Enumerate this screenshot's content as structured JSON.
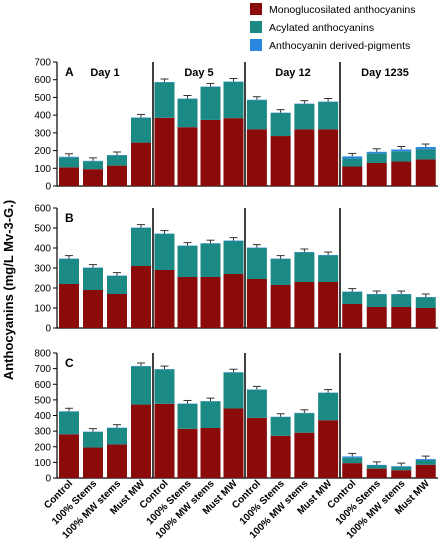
{
  "chart_data": {
    "type": "bar",
    "stacked": true,
    "ylabel": "Anthocyanins (mg/L Mv-3-G.)",
    "legend": {
      "placement": "top-right",
      "entries": [
        {
          "name": "Monoglucosilated anthocyanins",
          "color": "#8b0a0a"
        },
        {
          "name": "Acylated anthocyanins",
          "color": "#1b8a84"
        },
        {
          "name": "Anthocyanin derived-pigments",
          "color": "#2a86e0"
        }
      ]
    },
    "days": [
      "Day 1",
      "Day 5",
      "Day 12",
      "Day 1235"
    ],
    "categories": [
      "Control",
      "100% Stems",
      "100% MW stems",
      "Must MW"
    ],
    "panels": [
      {
        "label": "A",
        "yticks": [
          0,
          100,
          200,
          300,
          400,
          500,
          600,
          700
        ],
        "ylim": [
          0,
          700
        ],
        "series": [
          {
            "name": "Monoglucosilated anthocyanins",
            "values": [
              105,
              95,
              115,
              245,
              385,
              332,
              373,
              383,
              320,
              282,
              320,
              320,
              110,
              130,
              138,
              150
            ]
          },
          {
            "name": "Acylated anthocyanins",
            "values": [
              57,
              45,
              58,
              140,
              200,
              160,
              187,
              205,
              165,
              130,
              143,
              155,
              45,
              55,
              58,
              58
            ]
          },
          {
            "name": "Anthocyanin derived-pigments",
            "values": [
              3,
              2,
              2,
              2,
              2,
              2,
              2,
              2,
              2,
              2,
              2,
              2,
              12,
              8,
              10,
              12
            ]
          }
        ]
      },
      {
        "label": "B",
        "yticks": [
          0,
          100,
          200,
          300,
          400,
          500,
          600
        ],
        "ylim": [
          0,
          600
        ],
        "series": [
          {
            "name": "Monoglucosilated anthocyanins",
            "values": [
              220,
              190,
              170,
              310,
              290,
              255,
              255,
              270,
              245,
              215,
              230,
              230,
              120,
              105,
              105,
              100
            ]
          },
          {
            "name": "Acylated anthocyanins",
            "values": [
              125,
              110,
              90,
              190,
              180,
              155,
              167,
              165,
              155,
              130,
              148,
              133,
              60,
              63,
              63,
              53
            ]
          },
          {
            "name": "Anthocyanin derived-pigments",
            "values": [
              2,
              2,
              2,
              2,
              2,
              2,
              2,
              2,
              2,
              2,
              2,
              2,
              2,
              2,
              2,
              2
            ]
          }
        ]
      },
      {
        "label": "C",
        "yticks": [
          0,
          100,
          200,
          300,
          400,
          500,
          600,
          700,
          800
        ],
        "ylim": [
          0,
          800
        ],
        "series": [
          {
            "name": "Monoglucosilated anthocyanins",
            "values": [
              280,
              195,
              215,
              470,
              475,
              315,
              320,
              445,
              385,
              270,
              290,
              370,
              95,
              60,
              50,
              85
            ]
          },
          {
            "name": "Acylated anthocyanins",
            "values": [
              145,
              100,
              105,
              245,
              220,
              160,
              170,
              230,
              180,
              120,
              125,
              175,
              35,
              20,
              22,
              30
            ]
          },
          {
            "name": "Anthocyanin derived-pigments",
            "values": [
              2,
              2,
              2,
              2,
              2,
              2,
              2,
              2,
              2,
              2,
              2,
              2,
              8,
              4,
              4,
              6
            ]
          }
        ]
      }
    ]
  }
}
